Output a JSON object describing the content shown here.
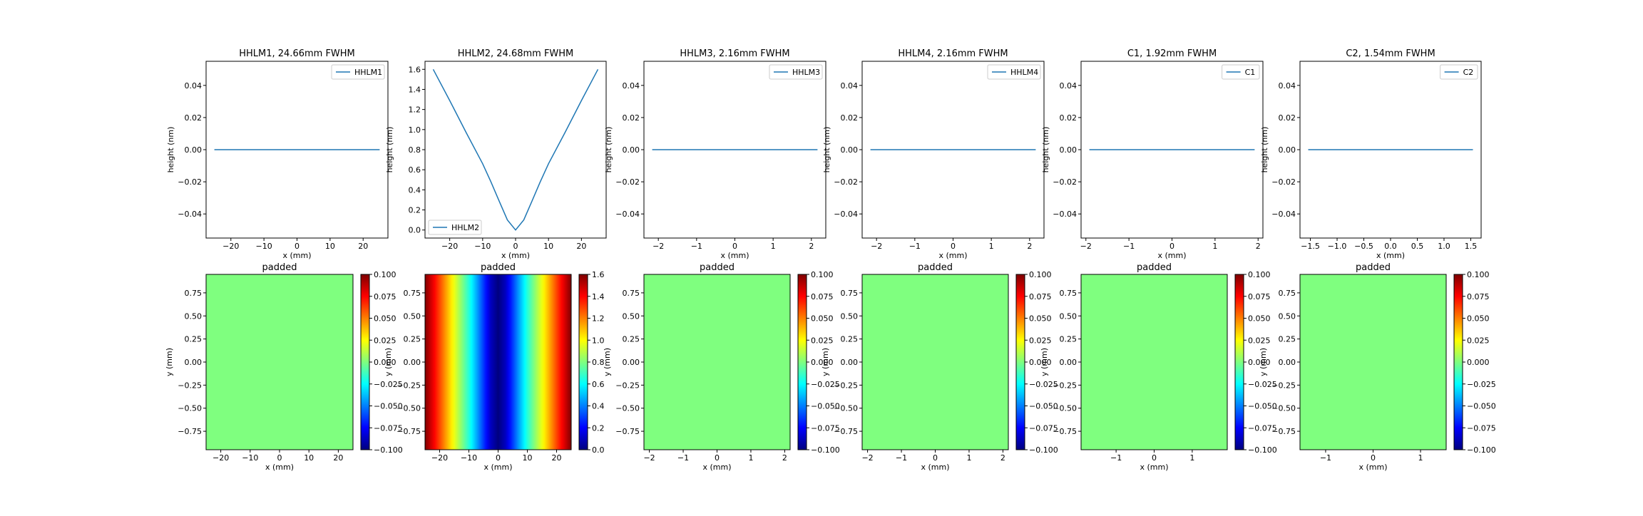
{
  "figure": {
    "colormap": [
      "#00007f",
      "#0000ff",
      "#007fff",
      "#00ffff",
      "#7fff7f",
      "#ffff00",
      "#ff7f00",
      "#ff0000",
      "#7f0000"
    ],
    "line_color": "#1f77b4",
    "flat_color": "#7fff7f"
  },
  "chart_data": [
    {
      "type": "line",
      "title": "HHLM1, 24.66mm FWHM",
      "xlabel": "x (mm)",
      "ylabel": "height (nm)",
      "xlim": [
        -27.5,
        27.5
      ],
      "ylim": [
        -0.055,
        0.055
      ],
      "xticks": [
        -20,
        -10,
        0,
        10,
        20
      ],
      "xtick_labels": [
        "−20",
        "−10",
        "0",
        "10",
        "20"
      ],
      "yticks": [
        -0.04,
        -0.02,
        0.0,
        0.02,
        0.04
      ],
      "ytick_labels": [
        "−0.04",
        "−0.02",
        "0.00",
        "0.02",
        "0.04"
      ],
      "legend_loc": "upper right",
      "series": [
        {
          "name": "HHLM1",
          "color": "#1f77b4",
          "x": [
            -25,
            25
          ],
          "y": [
            0,
            0
          ]
        }
      ]
    },
    {
      "type": "line",
      "title": "HHLM2, 24.68mm FWHM",
      "xlabel": "x (mm)",
      "ylabel": "height (nm)",
      "xlim": [
        -27.5,
        27.5
      ],
      "ylim": [
        -0.08,
        1.68
      ],
      "xticks": [
        -20,
        -10,
        0,
        10,
        20
      ],
      "xtick_labels": [
        "−20",
        "−10",
        "0",
        "10",
        "20"
      ],
      "yticks": [
        0.0,
        0.2,
        0.4,
        0.6,
        0.8,
        1.0,
        1.2,
        1.4,
        1.6
      ],
      "ytick_labels": [
        "0.0",
        "0.2",
        "0.4",
        "0.6",
        "0.8",
        "1.0",
        "1.2",
        "1.4",
        "1.6"
      ],
      "legend_loc": "lower left",
      "series": [
        {
          "name": "HHLM2",
          "color": "#1f77b4",
          "x": [
            -25,
            -20,
            -15,
            -10,
            -7.5,
            -5,
            -2.5,
            0,
            2.5,
            5,
            7.5,
            10,
            15,
            20,
            25
          ],
          "y": [
            1.6,
            1.29,
            0.97,
            0.66,
            0.48,
            0.29,
            0.1,
            0.0,
            0.1,
            0.29,
            0.48,
            0.66,
            0.97,
            1.29,
            1.6
          ]
        }
      ]
    },
    {
      "type": "line",
      "title": "HHLM3, 2.16mm FWHM",
      "xlabel": "x (mm)",
      "ylabel": "height (nm)",
      "xlim": [
        -2.376,
        2.376
      ],
      "ylim": [
        -0.055,
        0.055
      ],
      "xticks": [
        -2,
        -1,
        0,
        1,
        2
      ],
      "xtick_labels": [
        "−2",
        "−1",
        "0",
        "1",
        "2"
      ],
      "yticks": [
        -0.04,
        -0.02,
        0.0,
        0.02,
        0.04
      ],
      "ytick_labels": [
        "−0.04",
        "−0.02",
        "0.00",
        "0.02",
        "0.04"
      ],
      "legend_loc": "upper right",
      "series": [
        {
          "name": "HHLM3",
          "color": "#1f77b4",
          "x": [
            -2.16,
            2.16
          ],
          "y": [
            0,
            0
          ]
        }
      ]
    },
    {
      "type": "line",
      "title": "HHLM4, 2.16mm FWHM",
      "xlabel": "x (mm)",
      "ylabel": "height (nm)",
      "xlim": [
        -2.376,
        2.376
      ],
      "ylim": [
        -0.055,
        0.055
      ],
      "xticks": [
        -2,
        -1,
        0,
        1,
        2
      ],
      "xtick_labels": [
        "−2",
        "−1",
        "0",
        "1",
        "2"
      ],
      "yticks": [
        -0.04,
        -0.02,
        0.0,
        0.02,
        0.04
      ],
      "ytick_labels": [
        "−0.04",
        "−0.02",
        "0.00",
        "0.02",
        "0.04"
      ],
      "legend_loc": "upper right",
      "series": [
        {
          "name": "HHLM4",
          "color": "#1f77b4",
          "x": [
            -2.16,
            2.16
          ],
          "y": [
            0,
            0
          ]
        }
      ]
    },
    {
      "type": "line",
      "title": "C1, 1.92mm FWHM",
      "xlabel": "x (mm)",
      "ylabel": "height (nm)",
      "xlim": [
        -2.112,
        2.112
      ],
      "ylim": [
        -0.055,
        0.055
      ],
      "xticks": [
        -2,
        -1,
        0,
        1,
        2
      ],
      "xtick_labels": [
        "−2",
        "−1",
        "0",
        "1",
        "2"
      ],
      "yticks": [
        -0.04,
        -0.02,
        0.0,
        0.02,
        0.04
      ],
      "ytick_labels": [
        "−0.04",
        "−0.02",
        "0.00",
        "0.02",
        "0.04"
      ],
      "legend_loc": "upper right",
      "series": [
        {
          "name": "C1",
          "color": "#1f77b4",
          "x": [
            -1.92,
            1.92
          ],
          "y": [
            0,
            0
          ]
        }
      ]
    },
    {
      "type": "line",
      "title": "C2, 1.54mm FWHM",
      "xlabel": "x (mm)",
      "ylabel": "height (nm)",
      "xlim": [
        -1.694,
        1.694
      ],
      "ylim": [
        -0.055,
        0.055
      ],
      "xticks": [
        -1.5,
        -1.0,
        -0.5,
        0.0,
        0.5,
        1.0,
        1.5
      ],
      "xtick_labels": [
        "−1.5",
        "−1.0",
        "−0.5",
        "0.0",
        "0.5",
        "1.0",
        "1.5"
      ],
      "yticks": [
        -0.04,
        -0.02,
        0.0,
        0.02,
        0.04
      ],
      "ytick_labels": [
        "−0.04",
        "−0.02",
        "0.00",
        "0.02",
        "0.04"
      ],
      "legend_loc": "upper right",
      "series": [
        {
          "name": "C2",
          "color": "#1f77b4",
          "x": [
            -1.54,
            1.54
          ],
          "y": [
            0,
            0
          ]
        }
      ]
    },
    {
      "type": "heatmap",
      "title": "padded",
      "xlabel": "x (mm)",
      "ylabel": "y (mm)",
      "xlim": [
        -25,
        25
      ],
      "ylim": [
        -0.95,
        0.95
      ],
      "xticks": [
        -20,
        -10,
        0,
        10,
        20
      ],
      "xtick_labels": [
        "−20",
        "−10",
        "0",
        "10",
        "20"
      ],
      "yticks": [
        -0.75,
        -0.5,
        -0.25,
        0.0,
        0.25,
        0.5,
        0.75
      ],
      "ytick_labels": [
        "−0.75",
        "−0.50",
        "−0.25",
        "0.00",
        "0.25",
        "0.50",
        "0.75"
      ],
      "colorbar": {
        "min": -0.1,
        "max": 0.1,
        "ticks": [
          -0.1,
          -0.075,
          -0.05,
          -0.025,
          0.0,
          0.025,
          0.05,
          0.075,
          0.1
        ],
        "tick_labels": [
          "−0.100",
          "−0.075",
          "−0.050",
          "−0.025",
          "0.000",
          "0.025",
          "0.050",
          "0.075",
          "0.100"
        ]
      },
      "field": {
        "kind": "constant",
        "value": 0.0
      }
    },
    {
      "type": "heatmap",
      "title": "padded",
      "xlabel": "x (mm)",
      "ylabel": "y (mm)",
      "xlim": [
        -25,
        25
      ],
      "ylim": [
        -0.95,
        0.95
      ],
      "xticks": [
        -20,
        -10,
        0,
        10,
        20
      ],
      "xtick_labels": [
        "−20",
        "−10",
        "0",
        "10",
        "20"
      ],
      "yticks": [
        -0.75,
        -0.5,
        -0.25,
        0.0,
        0.25,
        0.5,
        0.75
      ],
      "ytick_labels": [
        "−0.75",
        "−0.50",
        "−0.25",
        "0.00",
        "0.25",
        "0.50",
        "0.75"
      ],
      "colorbar": {
        "min": 0.0,
        "max": 1.6,
        "ticks": [
          0.0,
          0.2,
          0.4,
          0.6,
          0.8,
          1.0,
          1.2,
          1.4,
          1.6
        ],
        "tick_labels": [
          "0.0",
          "0.2",
          "0.4",
          "0.6",
          "0.8",
          "1.0",
          "1.2",
          "1.4",
          "1.6"
        ]
      },
      "field": {
        "kind": "varies_with_x",
        "x": [
          -25,
          -20,
          -15,
          -10,
          -7.5,
          -5,
          -2.5,
          0,
          2.5,
          5,
          7.5,
          10,
          15,
          20,
          25
        ],
        "values": [
          1.6,
          1.29,
          0.97,
          0.66,
          0.48,
          0.29,
          0.1,
          0.0,
          0.1,
          0.29,
          0.48,
          0.66,
          0.97,
          1.29,
          1.6
        ]
      }
    },
    {
      "type": "heatmap",
      "title": "padded",
      "xlabel": "x (mm)",
      "ylabel": "y (mm)",
      "xlim": [
        -2.16,
        2.16
      ],
      "ylim": [
        -0.95,
        0.95
      ],
      "xticks": [
        -2,
        -1,
        0,
        1,
        2
      ],
      "xtick_labels": [
        "−2",
        "−1",
        "0",
        "1",
        "2"
      ],
      "yticks": [
        -0.75,
        -0.5,
        -0.25,
        0.0,
        0.25,
        0.5,
        0.75
      ],
      "ytick_labels": [
        "−0.75",
        "−0.50",
        "−0.25",
        "0.00",
        "0.25",
        "0.50",
        "0.75"
      ],
      "colorbar": {
        "min": -0.1,
        "max": 0.1,
        "ticks": [
          -0.1,
          -0.075,
          -0.05,
          -0.025,
          0.0,
          0.025,
          0.05,
          0.075,
          0.1
        ],
        "tick_labels": [
          "−0.100",
          "−0.075",
          "−0.050",
          "−0.025",
          "0.000",
          "0.025",
          "0.050",
          "0.075",
          "0.100"
        ]
      },
      "field": {
        "kind": "constant",
        "value": 0.0
      }
    },
    {
      "type": "heatmap",
      "title": "padded",
      "xlabel": "x (mm)",
      "ylabel": "y (mm)",
      "xlim": [
        -2.16,
        2.16
      ],
      "ylim": [
        -0.95,
        0.95
      ],
      "xticks": [
        -2,
        -1,
        0,
        1,
        2
      ],
      "xtick_labels": [
        "−2",
        "−1",
        "0",
        "1",
        "2"
      ],
      "yticks": [
        -0.75,
        -0.5,
        -0.25,
        0.0,
        0.25,
        0.5,
        0.75
      ],
      "ytick_labels": [
        "−0.75",
        "−0.50",
        "−0.25",
        "0.00",
        "0.25",
        "0.50",
        "0.75"
      ],
      "colorbar": {
        "min": -0.1,
        "max": 0.1,
        "ticks": [
          -0.1,
          -0.075,
          -0.05,
          -0.025,
          0.0,
          0.025,
          0.05,
          0.075,
          0.1
        ],
        "tick_labels": [
          "−0.100",
          "−0.075",
          "−0.050",
          "−0.025",
          "0.000",
          "0.025",
          "0.050",
          "0.075",
          "0.100"
        ]
      },
      "field": {
        "kind": "constant",
        "value": 0.0
      }
    },
    {
      "type": "heatmap",
      "title": "padded",
      "xlabel": "x (mm)",
      "ylabel": "y (mm)",
      "xlim": [
        -1.92,
        1.92
      ],
      "ylim": [
        -0.95,
        0.95
      ],
      "xticks": [
        -1,
        0,
        1
      ],
      "xtick_labels": [
        "−1",
        "0",
        "1"
      ],
      "yticks": [
        -0.75,
        -0.5,
        -0.25,
        0.0,
        0.25,
        0.5,
        0.75
      ],
      "ytick_labels": [
        "−0.75",
        "−0.50",
        "−0.25",
        "0.00",
        "0.25",
        "0.50",
        "0.75"
      ],
      "colorbar": {
        "min": -0.1,
        "max": 0.1,
        "ticks": [
          -0.1,
          -0.075,
          -0.05,
          -0.025,
          0.0,
          0.025,
          0.05,
          0.075,
          0.1
        ],
        "tick_labels": [
          "−0.100",
          "−0.075",
          "−0.050",
          "−0.025",
          "0.000",
          "0.025",
          "0.050",
          "0.075",
          "0.100"
        ]
      },
      "field": {
        "kind": "constant",
        "value": 0.0
      }
    },
    {
      "type": "heatmap",
      "title": "padded",
      "xlabel": "x (mm)",
      "ylabel": "y (mm)",
      "xlim": [
        -1.54,
        1.54
      ],
      "ylim": [
        -0.95,
        0.95
      ],
      "xticks": [
        -1,
        0,
        1
      ],
      "xtick_labels": [
        "−1",
        "0",
        "1"
      ],
      "yticks": [
        -0.75,
        -0.5,
        -0.25,
        0.0,
        0.25,
        0.5,
        0.75
      ],
      "ytick_labels": [
        "−0.75",
        "−0.50",
        "−0.25",
        "0.00",
        "0.25",
        "0.50",
        "0.75"
      ],
      "colorbar": {
        "min": -0.1,
        "max": 0.1,
        "ticks": [
          -0.1,
          -0.075,
          -0.05,
          -0.025,
          0.0,
          0.025,
          0.05,
          0.075,
          0.1
        ],
        "tick_labels": [
          "−0.100",
          "−0.075",
          "−0.050",
          "−0.025",
          "0.000",
          "0.025",
          "0.050",
          "0.075",
          "0.100"
        ]
      },
      "field": {
        "kind": "constant",
        "value": 0.0
      }
    }
  ]
}
